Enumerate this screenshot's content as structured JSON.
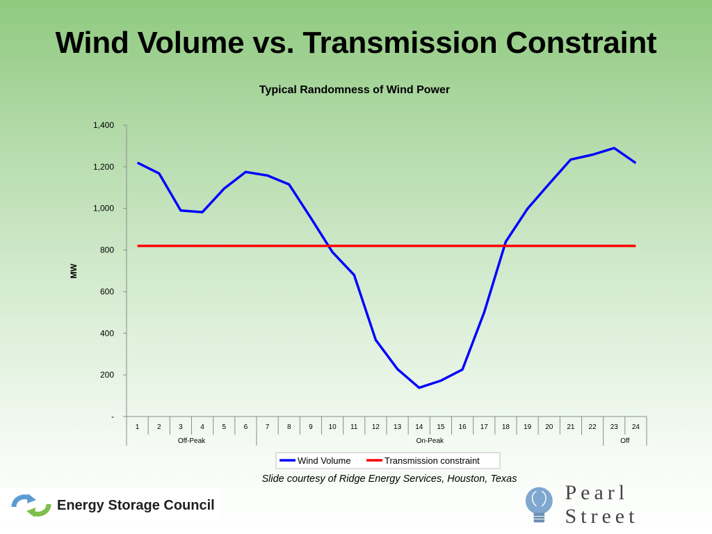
{
  "slide": {
    "title": "Wind Volume vs. Transmission Constraint",
    "caption": "Slide courtesy of Ridge Energy Services, Houston, Texas"
  },
  "logos": {
    "left": {
      "name": "Energy Storage Council",
      "icon": "recycle-arrows-icon",
      "colors": [
        "#5b9bd5",
        "#7fbf4d"
      ]
    },
    "right": {
      "name": "Pearl Street",
      "icon": "lightbulb-icon"
    }
  },
  "chart_data": {
    "type": "line",
    "title": "Typical Randomness of Wind Power",
    "xlabel": "",
    "ylabel": "MW",
    "categories": [
      "1",
      "2",
      "3",
      "4",
      "5",
      "6",
      "7",
      "8",
      "9",
      "10",
      "11",
      "12",
      "13",
      "14",
      "15",
      "16",
      "17",
      "18",
      "19",
      "20",
      "21",
      "22",
      "23",
      "24"
    ],
    "category_groups": [
      {
        "label": "Off-Peak",
        "from": "1",
        "to": "6"
      },
      {
        "label": "On-Peak",
        "from": "7",
        "to": "22"
      },
      {
        "label": "Off",
        "from": "23",
        "to": "24"
      }
    ],
    "ylim": [
      0,
      1400
    ],
    "yticks": [
      0,
      200,
      400,
      600,
      800,
      1000,
      1200,
      1400
    ],
    "ytick_labels": [
      "-",
      "200",
      "400",
      "600",
      "800",
      "1,000",
      "1,200",
      "1,400"
    ],
    "grid": false,
    "legend": "bottom",
    "series": [
      {
        "name": "Wind Volume",
        "color": "#0000ff",
        "values": [
          1220,
          1168,
          990,
          982,
          1095,
          1175,
          1158,
          1115,
          955,
          790,
          680,
          368,
          228,
          138,
          172,
          226,
          500,
          840,
          998,
          1118,
          1235,
          1258,
          1290,
          1218
        ]
      },
      {
        "name": "Transmission constraint",
        "color": "#ff0000",
        "values": [
          820,
          820,
          820,
          820,
          820,
          820,
          820,
          820,
          820,
          820,
          820,
          820,
          820,
          820,
          820,
          820,
          820,
          820,
          820,
          820,
          820,
          820,
          820,
          820
        ]
      }
    ]
  }
}
